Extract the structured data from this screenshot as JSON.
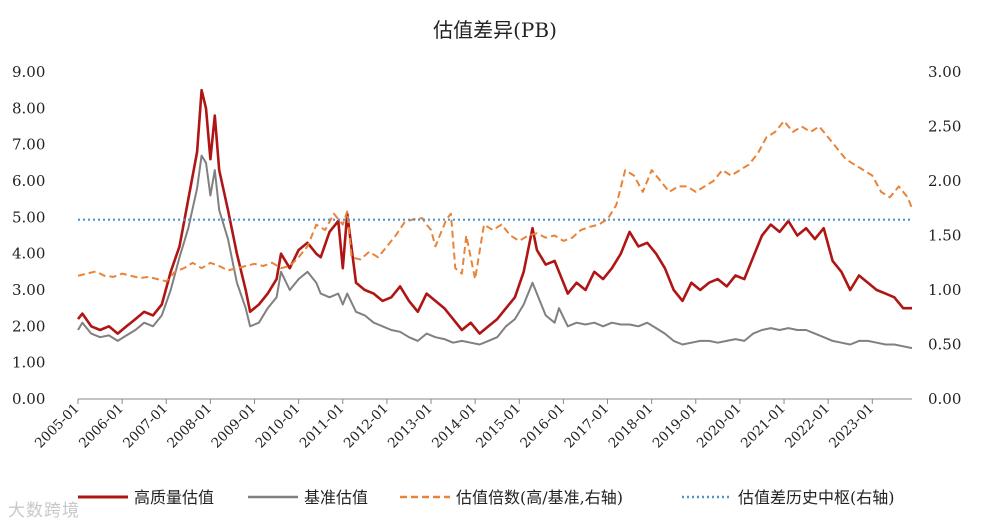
{
  "watermark": "大数跨境",
  "chart_data": {
    "type": "line",
    "title": "估值差异(PB)",
    "xlabel": "",
    "ylabel": "",
    "ylim": [
      0,
      9
    ],
    "y2lim": [
      0,
      3
    ],
    "yticks": [
      "0.00",
      "1.00",
      "2.00",
      "3.00",
      "4.00",
      "5.00",
      "6.00",
      "7.00",
      "8.00",
      "9.00"
    ],
    "y2ticks": [
      "0.00",
      "0.50",
      "1.00",
      "1.50",
      "2.00",
      "2.50",
      "3.00"
    ],
    "xticks": [
      "2005-01",
      "2006-01",
      "2007-01",
      "2008-01",
      "2009-01",
      "2010-01",
      "2011-01",
      "2012-01",
      "2013-01",
      "2014-01",
      "2015-01",
      "2016-01",
      "2017-01",
      "2018-01",
      "2019-01",
      "2020-01",
      "2021-01",
      "2022-01",
      "2023-01"
    ],
    "xrange": [
      2005.0,
      2023.9
    ],
    "grid": false,
    "legend_position": "bottom",
    "series": [
      {
        "name": "高质量估值",
        "axis": "left",
        "color": "#b01515",
        "style": "solid",
        "x": [
          2005.0,
          2005.1,
          2005.3,
          2005.5,
          2005.7,
          2005.9,
          2006.1,
          2006.3,
          2006.5,
          2006.7,
          2006.9,
          2007.1,
          2007.3,
          2007.5,
          2007.7,
          2007.8,
          2007.9,
          2008.0,
          2008.1,
          2008.2,
          2008.4,
          2008.6,
          2008.8,
          2008.9,
          2009.1,
          2009.3,
          2009.5,
          2009.6,
          2009.8,
          2010.0,
          2010.2,
          2010.4,
          2010.5,
          2010.7,
          2010.9,
          2011.0,
          2011.1,
          2011.3,
          2011.5,
          2011.7,
          2011.9,
          2012.1,
          2012.3,
          2012.5,
          2012.7,
          2012.9,
          2013.1,
          2013.3,
          2013.5,
          2013.7,
          2013.9,
          2014.1,
          2014.3,
          2014.5,
          2014.7,
          2014.9,
          2015.1,
          2015.3,
          2015.4,
          2015.6,
          2015.8,
          2015.9,
          2016.1,
          2016.3,
          2016.5,
          2016.7,
          2016.9,
          2017.1,
          2017.3,
          2017.5,
          2017.7,
          2017.9,
          2018.1,
          2018.3,
          2018.5,
          2018.7,
          2018.9,
          2019.1,
          2019.3,
          2019.5,
          2019.7,
          2019.9,
          2020.1,
          2020.3,
          2020.5,
          2020.7,
          2020.9,
          2021.1,
          2021.3,
          2021.5,
          2021.7,
          2021.9,
          2022.1,
          2022.3,
          2022.5,
          2022.7,
          2022.9,
          2023.1,
          2023.3,
          2023.5,
          2023.7,
          2023.9
        ],
        "values": [
          2.2,
          2.35,
          2.0,
          1.9,
          2.0,
          1.8,
          2.0,
          2.2,
          2.4,
          2.3,
          2.6,
          3.5,
          4.2,
          5.5,
          6.8,
          8.5,
          8.0,
          6.6,
          7.8,
          6.3,
          5.2,
          4.0,
          3.0,
          2.4,
          2.6,
          2.9,
          3.3,
          4.0,
          3.6,
          4.1,
          4.3,
          4.0,
          3.9,
          4.6,
          4.9,
          3.6,
          5.1,
          3.2,
          3.0,
          2.9,
          2.7,
          2.8,
          3.1,
          2.7,
          2.4,
          2.9,
          2.7,
          2.5,
          2.2,
          1.9,
          2.1,
          1.8,
          2.0,
          2.2,
          2.5,
          2.8,
          3.5,
          4.7,
          4.1,
          3.7,
          3.8,
          3.5,
          2.9,
          3.2,
          3.0,
          3.5,
          3.3,
          3.6,
          4.0,
          4.6,
          4.2,
          4.3,
          4.0,
          3.6,
          3.0,
          2.7,
          3.2,
          3.0,
          3.2,
          3.3,
          3.1,
          3.4,
          3.3,
          3.9,
          4.5,
          4.8,
          4.6,
          4.9,
          4.5,
          4.7,
          4.4,
          4.7,
          3.8,
          3.5,
          3.0,
          3.4,
          3.2,
          3.0,
          2.9,
          2.8,
          2.5,
          2.5
        ]
      },
      {
        "name": "基准估值",
        "axis": "left",
        "color": "#808080",
        "style": "solid",
        "x": [
          2005.0,
          2005.1,
          2005.3,
          2005.5,
          2005.7,
          2005.9,
          2006.1,
          2006.3,
          2006.5,
          2006.7,
          2006.9,
          2007.1,
          2007.3,
          2007.5,
          2007.7,
          2007.8,
          2007.9,
          2008.0,
          2008.1,
          2008.2,
          2008.4,
          2008.6,
          2008.8,
          2008.9,
          2009.1,
          2009.3,
          2009.5,
          2009.6,
          2009.8,
          2010.0,
          2010.2,
          2010.4,
          2010.5,
          2010.7,
          2010.9,
          2011.0,
          2011.1,
          2011.3,
          2011.5,
          2011.7,
          2011.9,
          2012.1,
          2012.3,
          2012.5,
          2012.7,
          2012.9,
          2013.1,
          2013.3,
          2013.5,
          2013.7,
          2013.9,
          2014.1,
          2014.3,
          2014.5,
          2014.7,
          2014.9,
          2015.1,
          2015.3,
          2015.4,
          2015.6,
          2015.8,
          2015.9,
          2016.1,
          2016.3,
          2016.5,
          2016.7,
          2016.9,
          2017.1,
          2017.3,
          2017.5,
          2017.7,
          2017.9,
          2018.1,
          2018.3,
          2018.5,
          2018.7,
          2018.9,
          2019.1,
          2019.3,
          2019.5,
          2019.7,
          2019.9,
          2020.1,
          2020.3,
          2020.5,
          2020.7,
          2020.9,
          2021.1,
          2021.3,
          2021.5,
          2021.7,
          2021.9,
          2022.1,
          2022.3,
          2022.5,
          2022.7,
          2022.9,
          2023.1,
          2023.3,
          2023.5,
          2023.7,
          2023.9
        ],
        "values": [
          1.9,
          2.1,
          1.8,
          1.7,
          1.75,
          1.6,
          1.75,
          1.9,
          2.1,
          2.0,
          2.3,
          3.0,
          3.9,
          4.7,
          5.8,
          6.7,
          6.5,
          5.6,
          6.3,
          5.2,
          4.4,
          3.2,
          2.5,
          2.0,
          2.1,
          2.5,
          2.8,
          3.5,
          3.0,
          3.3,
          3.5,
          3.2,
          2.9,
          2.8,
          2.9,
          2.6,
          2.9,
          2.4,
          2.3,
          2.1,
          2.0,
          1.9,
          1.85,
          1.7,
          1.6,
          1.8,
          1.7,
          1.65,
          1.55,
          1.6,
          1.55,
          1.5,
          1.6,
          1.7,
          2.0,
          2.2,
          2.6,
          3.2,
          2.9,
          2.3,
          2.1,
          2.5,
          2.0,
          2.1,
          2.05,
          2.1,
          2.0,
          2.1,
          2.05,
          2.05,
          2.0,
          2.1,
          1.95,
          1.8,
          1.6,
          1.5,
          1.55,
          1.6,
          1.6,
          1.55,
          1.6,
          1.65,
          1.6,
          1.8,
          1.9,
          1.95,
          1.9,
          1.95,
          1.9,
          1.9,
          1.8,
          1.7,
          1.6,
          1.55,
          1.5,
          1.6,
          1.6,
          1.55,
          1.5,
          1.5,
          1.45,
          1.4
        ]
      },
      {
        "name": "估值倍数(高/基准,右轴)",
        "axis": "right",
        "color": "#e8843a",
        "style": "dashed",
        "x": [
          2005.0,
          2005.2,
          2005.4,
          2005.6,
          2005.8,
          2006.0,
          2006.2,
          2006.4,
          2006.6,
          2006.8,
          2007.0,
          2007.2,
          2007.4,
          2007.6,
          2007.8,
          2008.0,
          2008.2,
          2008.4,
          2008.6,
          2008.8,
          2009.0,
          2009.2,
          2009.4,
          2009.6,
          2009.8,
          2010.0,
          2010.2,
          2010.4,
          2010.6,
          2010.8,
          2010.9,
          2011.0,
          2011.1,
          2011.2,
          2011.4,
          2011.6,
          2011.8,
          2012.0,
          2012.2,
          2012.4,
          2012.6,
          2012.8,
          2012.9,
          2013.0,
          2013.1,
          2013.2,
          2013.35,
          2013.45,
          2013.55,
          2013.7,
          2013.8,
          2013.9,
          2014.0,
          2014.2,
          2014.4,
          2014.6,
          2014.8,
          2015.0,
          2015.2,
          2015.4,
          2015.6,
          2015.8,
          2016.0,
          2016.2,
          2016.4,
          2016.6,
          2016.8,
          2017.0,
          2017.2,
          2017.4,
          2017.6,
          2017.8,
          2018.0,
          2018.2,
          2018.4,
          2018.6,
          2018.8,
          2019.0,
          2019.2,
          2019.4,
          2019.6,
          2019.8,
          2020.0,
          2020.2,
          2020.4,
          2020.6,
          2020.8,
          2021.0,
          2021.2,
          2021.4,
          2021.6,
          2021.8,
          2022.0,
          2022.2,
          2022.4,
          2022.6,
          2022.8,
          2023.0,
          2023.2,
          2023.4,
          2023.6,
          2023.8,
          2023.9
        ],
        "values": [
          1.13,
          1.15,
          1.17,
          1.13,
          1.12,
          1.15,
          1.13,
          1.11,
          1.12,
          1.1,
          1.08,
          1.17,
          1.2,
          1.25,
          1.2,
          1.25,
          1.22,
          1.18,
          1.2,
          1.22,
          1.24,
          1.22,
          1.25,
          1.2,
          1.22,
          1.3,
          1.4,
          1.6,
          1.55,
          1.7,
          1.65,
          1.6,
          1.72,
          1.3,
          1.28,
          1.35,
          1.3,
          1.4,
          1.5,
          1.62,
          1.65,
          1.66,
          1.6,
          1.55,
          1.4,
          1.5,
          1.65,
          1.7,
          1.2,
          1.15,
          1.5,
          1.3,
          1.1,
          1.6,
          1.55,
          1.6,
          1.5,
          1.45,
          1.5,
          1.52,
          1.48,
          1.5,
          1.45,
          1.48,
          1.55,
          1.58,
          1.6,
          1.65,
          1.78,
          2.1,
          2.05,
          1.9,
          2.1,
          2.0,
          1.9,
          1.95,
          1.95,
          1.9,
          1.95,
          2.0,
          2.1,
          2.05,
          2.1,
          2.15,
          2.25,
          2.4,
          2.45,
          2.55,
          2.45,
          2.5,
          2.45,
          2.5,
          2.4,
          2.3,
          2.2,
          2.15,
          2.1,
          2.05,
          1.9,
          1.85,
          1.95,
          1.85,
          1.75
        ]
      },
      {
        "name": "估值差历史中枢(右轴)",
        "axis": "right",
        "color": "#4f93cf",
        "style": "dotted",
        "x": [
          2005.0,
          2023.9
        ],
        "values": [
          1.645,
          1.645
        ]
      }
    ]
  }
}
